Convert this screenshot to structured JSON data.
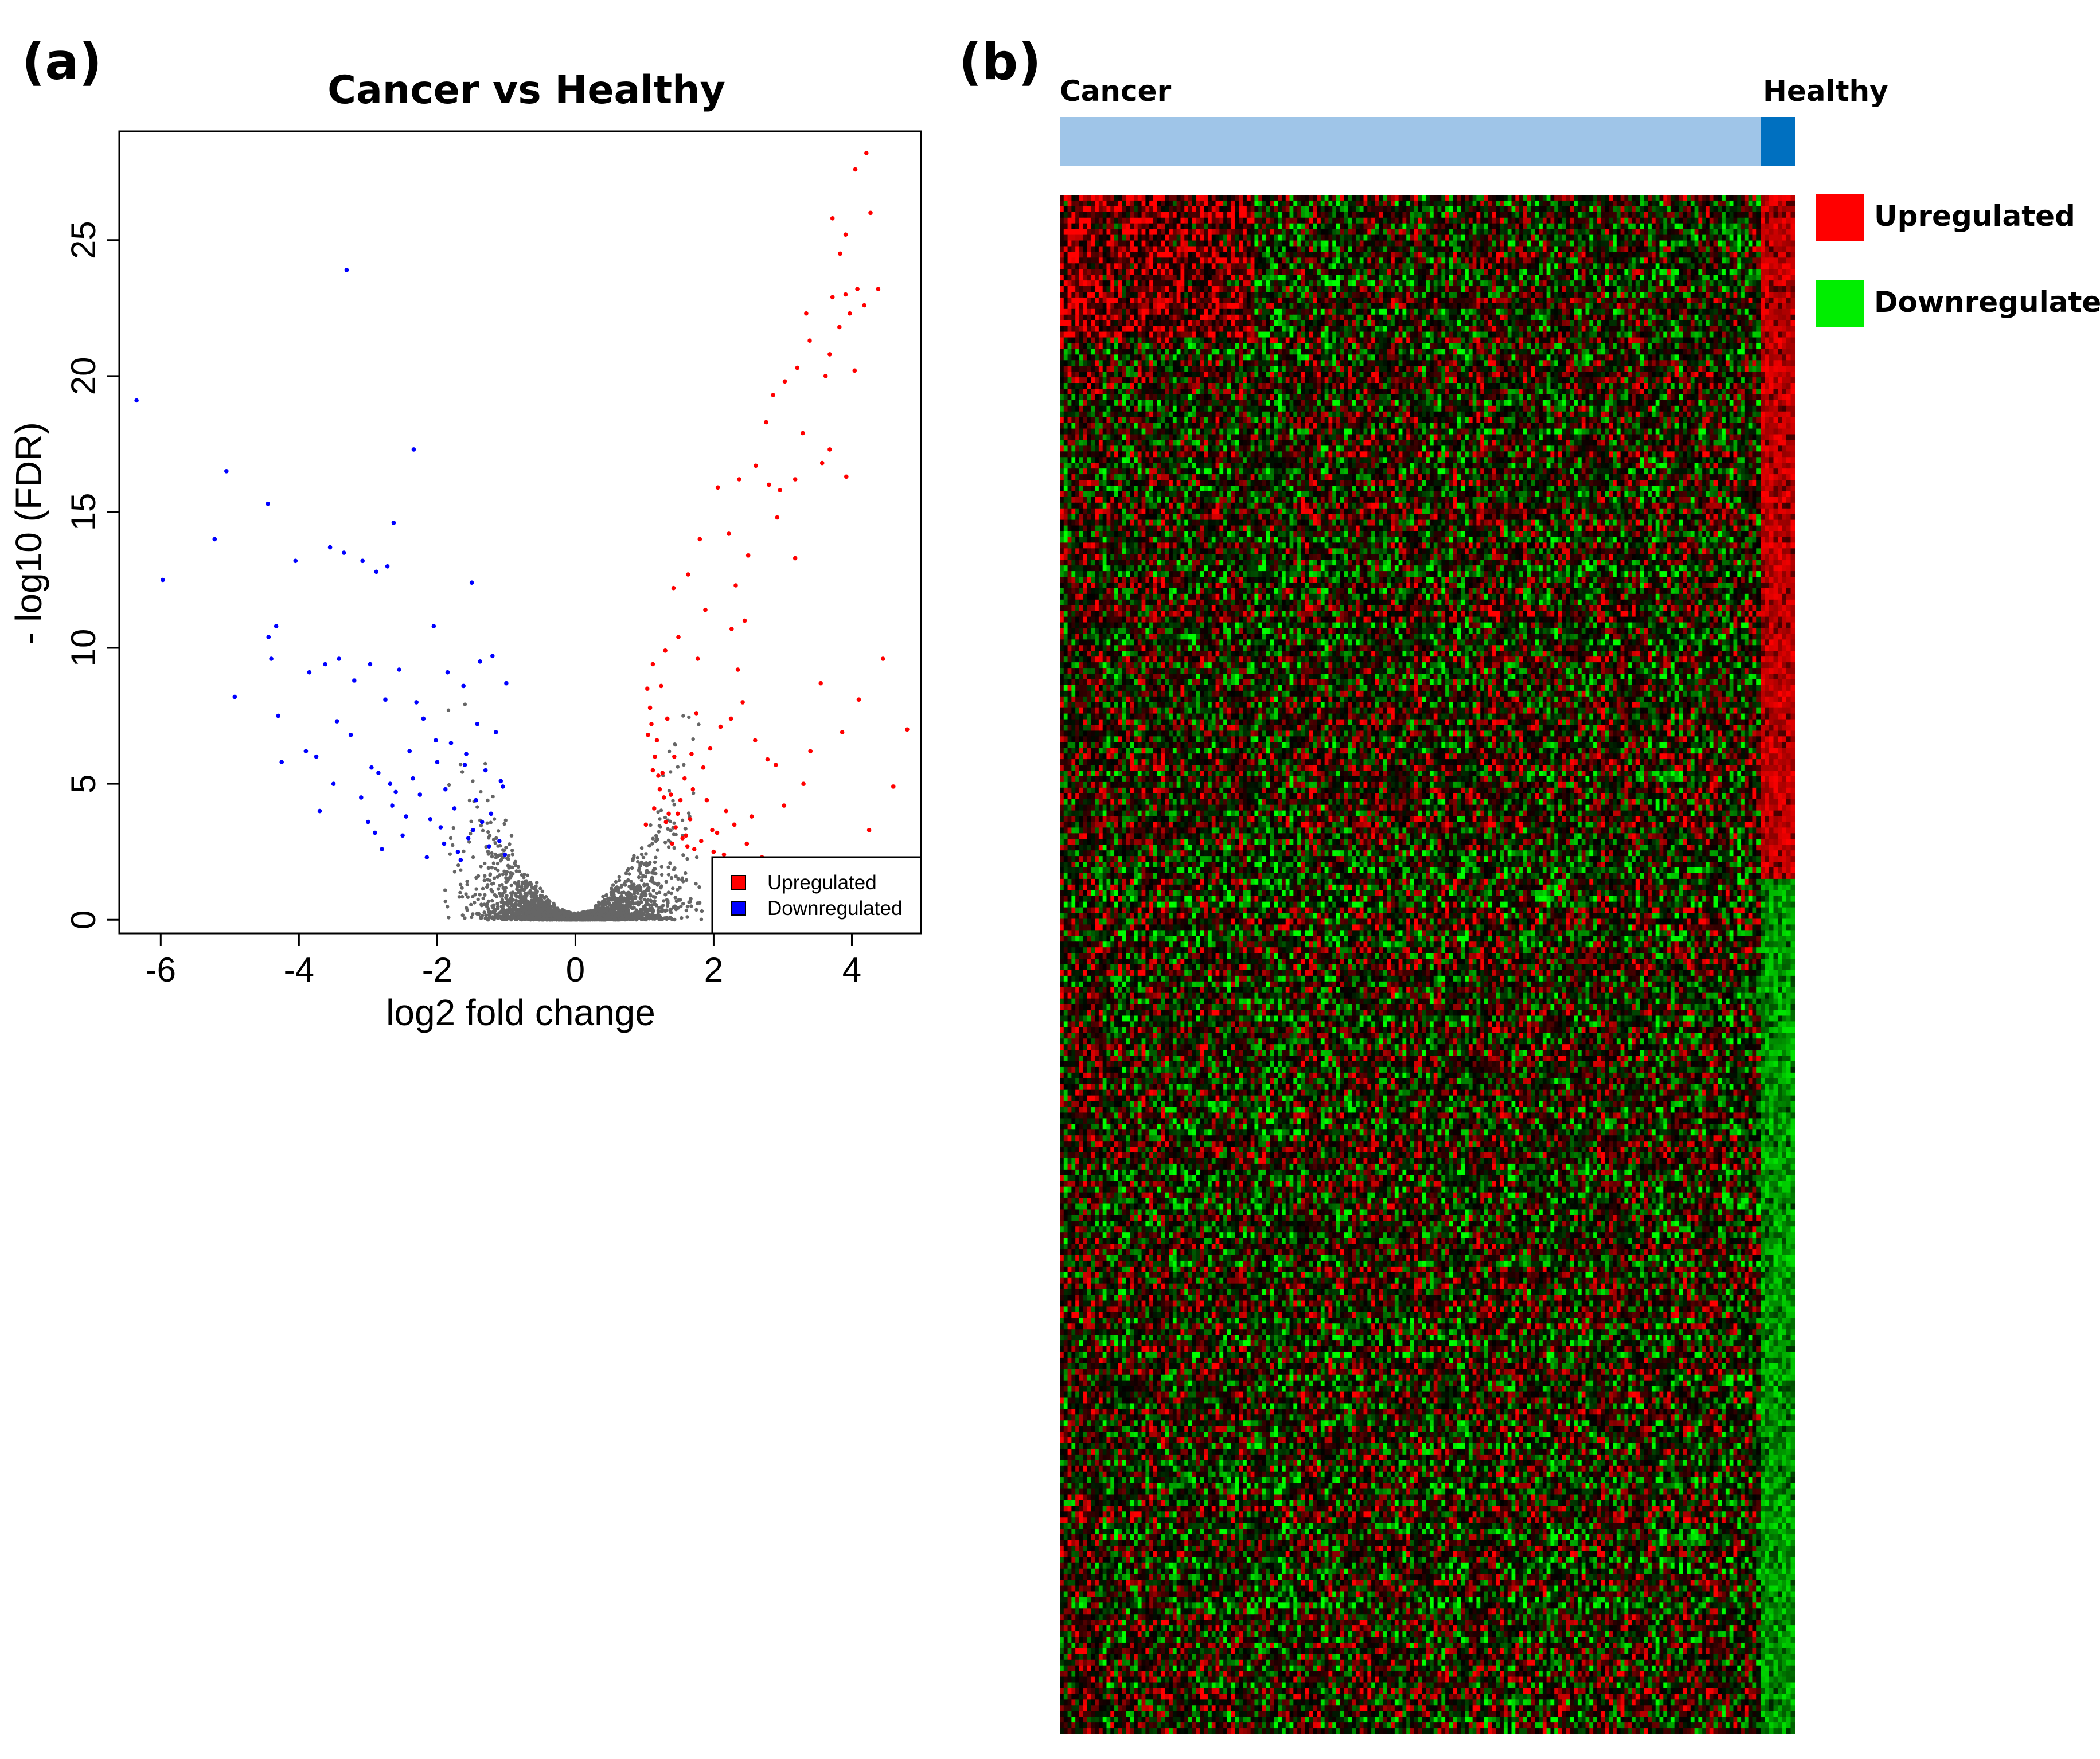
{
  "figure": {
    "label_a": "(a)",
    "label_b": "(b)"
  },
  "chart_data": [
    {
      "type": "scatter",
      "title": "Cancer vs Healthy",
      "xlabel": "log2 fold change",
      "ylabel": "- log10 (FDR)",
      "xlim": [
        -6.6,
        5.0
      ],
      "ylim": [
        -0.5,
        29.0
      ],
      "xticks": [
        -6,
        -4,
        -2,
        0,
        2,
        4
      ],
      "yticks": [
        0,
        5,
        10,
        15,
        20,
        25
      ],
      "legend": {
        "placement": "bottom-right",
        "entries": [
          "Upregulated",
          "Downregulated"
        ]
      },
      "colors": {
        "Upregulated": "#ff0000",
        "Downregulated": "#0000ff",
        "Not significant": "#666666"
      },
      "series": [
        {
          "name": "Upregulated",
          "x": [
            4.05,
            4.21,
            3.72,
            4.27,
            3.91,
            3.83,
            4.08,
            3.91,
            4.18,
            3.72,
            4.38,
            3.97,
            3.82,
            3.39,
            3.34,
            3.68,
            4.04,
            3.62,
            3.21,
            3.03,
            2.86,
            3.29,
            2.76,
            3.68,
            3.92,
            3.57,
            3.18,
            2.8,
            2.96,
            2.61,
            2.37,
            2.06,
            2.22,
            2.92,
            3.18,
            1.8,
            2.5,
            1.63,
            2.32,
            1.42,
            1.88,
            2.45,
            2.26,
            1.49,
            1.3,
            1.12,
            1.77,
            2.35,
            3.55,
            4.1,
            4.45,
            4.8,
            3.86,
            1.75,
            1.04,
            1.1,
            1.15,
            1.2,
            1.28,
            1.35,
            1.45,
            1.55,
            1.62,
            1.7,
            1.85,
            1.95,
            2.1,
            2.25,
            2.42,
            2.6,
            2.78,
            3.02,
            3.3,
            1.05,
            1.12,
            1.22,
            1.31,
            1.4,
            1.58,
            1.68,
            1.9,
            2.05,
            2.15,
            2.55,
            2.9,
            3.4,
            1.08,
            1.18,
            1.26,
            1.38,
            1.48,
            1.6,
            1.72,
            2.0,
            2.3,
            2.7,
            3.1,
            4.25,
            4.6,
            1.02,
            1.14,
            1.24,
            1.33,
            1.43,
            1.52,
            1.66,
            1.82,
            1.98,
            2.18,
            2.48,
            2.85
          ],
          "y": [
            27.6,
            28.2,
            25.8,
            26.0,
            25.2,
            24.5,
            23.2,
            23.0,
            22.6,
            22.9,
            23.2,
            22.3,
            21.8,
            21.3,
            22.3,
            20.8,
            20.2,
            20.0,
            20.3,
            19.8,
            19.3,
            17.9,
            18.3,
            17.3,
            16.3,
            16.8,
            16.2,
            16.0,
            15.8,
            16.7,
            16.2,
            15.9,
            14.2,
            14.8,
            13.3,
            14.0,
            13.4,
            12.7,
            12.3,
            12.2,
            11.4,
            11.0,
            10.7,
            10.4,
            9.9,
            9.4,
            9.6,
            9.2,
            8.7,
            8.1,
            9.6,
            7.0,
            6.9,
            7.6,
            8.5,
            7.2,
            6.0,
            5.3,
            4.5,
            3.9,
            3.4,
            3.0,
            2.7,
            4.8,
            5.6,
            6.3,
            7.1,
            7.4,
            8.0,
            6.6,
            5.9,
            4.2,
            5.0,
            6.8,
            5.5,
            4.8,
            3.6,
            2.8,
            5.2,
            6.1,
            4.4,
            3.2,
            2.4,
            3.8,
            5.7,
            6.2,
            7.8,
            6.6,
            5.4,
            4.6,
            3.9,
            3.1,
            2.6,
            2.5,
            3.5,
            2.3,
            2.1,
            3.3,
            4.9,
            3.5,
            4.1,
            8.6,
            7.4,
            6.0,
            4.4,
            3.7,
            2.9,
            3.3,
            4.0,
            2.8,
            2.2
          ]
        },
        {
          "name": "Downregulated",
          "x": [
            -6.35,
            -5.97,
            -5.05,
            -4.93,
            -5.22,
            -4.45,
            -3.31,
            -2.34,
            -4.33,
            -4.05,
            -3.55,
            -3.35,
            -3.08,
            -2.63,
            -2.88,
            -2.72,
            -1.5,
            -4.44,
            -4.4,
            -4.3,
            -3.85,
            -3.62,
            -3.42,
            -3.2,
            -2.97,
            -2.75,
            -2.55,
            -2.3,
            -2.05,
            -1.85,
            -1.62,
            -1.38,
            -1.2,
            -1.0,
            -4.25,
            -3.9,
            -3.7,
            -3.5,
            -3.25,
            -3.0,
            -2.85,
            -2.6,
            -2.4,
            -2.2,
            -2.0,
            -1.8,
            -1.58,
            -1.42,
            -1.3,
            -1.15,
            -1.05,
            -3.75,
            -3.45,
            -3.1,
            -2.9,
            -2.68,
            -2.45,
            -2.25,
            -1.95,
            -1.75,
            -1.55,
            -1.35,
            -1.1,
            -2.8,
            -2.5,
            -2.15,
            -1.9,
            -1.7,
            -1.48,
            -1.25,
            -1.02,
            -2.65,
            -2.35,
            -2.1,
            -1.88,
            -1.66,
            -1.44,
            -1.22,
            -1.08,
            -2.95,
            -2.02,
            -1.6
          ],
          "y": [
            19.1,
            12.5,
            16.5,
            8.2,
            14.0,
            15.3,
            23.9,
            17.3,
            10.8,
            13.2,
            13.7,
            13.5,
            13.2,
            14.6,
            12.8,
            13.0,
            12.4,
            10.4,
            9.6,
            7.5,
            9.1,
            9.4,
            9.6,
            8.8,
            9.4,
            8.1,
            9.2,
            8.0,
            10.8,
            9.1,
            8.6,
            9.5,
            9.7,
            8.7,
            5.8,
            6.2,
            4.0,
            5.0,
            6.8,
            3.6,
            5.4,
            4.7,
            6.2,
            7.4,
            5.8,
            6.5,
            6.1,
            7.2,
            5.5,
            6.9,
            4.9,
            6.0,
            7.3,
            4.5,
            3.2,
            5.0,
            3.8,
            4.6,
            3.4,
            4.1,
            3.0,
            3.6,
            2.9,
            2.6,
            3.1,
            2.3,
            2.8,
            2.5,
            3.3,
            2.7,
            2.4,
            4.2,
            5.2,
            3.7,
            4.8,
            2.2,
            4.4,
            3.9,
            5.1,
            5.6,
            6.6,
            5.7
          ]
        }
      ]
    },
    {
      "type": "heatmap",
      "column_groups": [
        {
          "name": "Cancer",
          "color": "#9fc5e8"
        },
        {
          "name": "Healthy",
          "color": "#0070c0"
        }
      ],
      "row_groups": [
        {
          "name": "Upregulated",
          "color": "#ff0000"
        },
        {
          "name": "Downregulated",
          "color": "#00ee00"
        }
      ],
      "legend": {
        "placement": "right",
        "entries": [
          "Upregulated",
          "Downregulated"
        ]
      },
      "colors": {
        "high": "#ff0000",
        "low": "#00ff00",
        "mid": "#000000"
      }
    }
  ]
}
